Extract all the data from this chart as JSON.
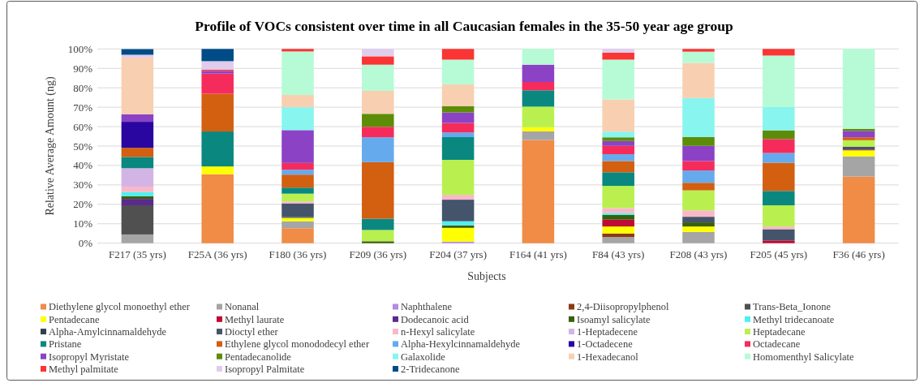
{
  "chart_data": {
    "type": "bar",
    "stacked": true,
    "title": "Profile of VOCs consistent over time in all Caucasian females in the 35-50 year age group",
    "xlabel": "Subjects",
    "ylabel": "Relative Average Amount (ng)",
    "categories": [
      "F217 (35 yrs)",
      "F25A (36 yrs)",
      "F180 (36 yrs)",
      "F209 (36 yrs)",
      "F204 (37 yrs)",
      "F164 (41 yrs)",
      "F84 (43 yrs)",
      "F208 (43 yrs)",
      "F205 (45 yrs)",
      "F36 (46 yrs)"
    ],
    "ylim": [
      0,
      100
    ],
    "yticks": [
      {
        "value": 0,
        "label": "0%"
      },
      {
        "value": 10,
        "label": "10%"
      },
      {
        "value": 20,
        "label": "20%"
      },
      {
        "value": 30,
        "label": "30%"
      },
      {
        "value": 40,
        "label": "40%"
      },
      {
        "value": 50,
        "label": "50%"
      },
      {
        "value": 60,
        "label": "60%"
      },
      {
        "value": 70,
        "label": "70%"
      },
      {
        "value": 80,
        "label": "80%"
      },
      {
        "value": 90,
        "label": "90%"
      },
      {
        "value": 100,
        "label": "100%"
      }
    ],
    "grid": "y",
    "legend": "bottom",
    "series": [
      {
        "name": "Diethylene glycol monoethyl ether",
        "color": "#f08c46",
        "values": [
          null,
          35.5,
          7.7,
          null,
          null,
          53.1,
          null,
          null,
          null,
          34.3
        ]
      },
      {
        "name": "Nonanal",
        "color": "#a5a5a5",
        "values": [
          4.5,
          null,
          3.6,
          null,
          null,
          4.5,
          3.2,
          5.8,
          null,
          10.4
        ]
      },
      {
        "name": "Naphthalene",
        "color": "#b48ce0",
        "values": [
          null,
          null,
          null,
          null,
          0.8,
          null,
          null,
          null,
          null,
          null
        ]
      },
      {
        "name": "2,4-Diisopropylphenol",
        "color": "#8b3a0f",
        "values": [
          null,
          null,
          null,
          null,
          null,
          null,
          1.8,
          null,
          null,
          null
        ]
      },
      {
        "name": "Trans-Beta_Ionone",
        "color": "#505050",
        "values": [
          15.0,
          null,
          null,
          null,
          null,
          null,
          null,
          null,
          null,
          null
        ]
      },
      {
        "name": "Pentadecane",
        "color": "#ffff00",
        "values": [
          null,
          4.0,
          1.7,
          null,
          7.1,
          2.1,
          3.6,
          2.8,
          null,
          3.1
        ]
      },
      {
        "name": "Methyl laurate",
        "color": "#c00a35",
        "values": [
          null,
          null,
          null,
          null,
          null,
          null,
          3.5,
          null,
          1.4,
          0.4
        ]
      },
      {
        "name": "Dodecanoic acid",
        "color": "#5b2a8c",
        "values": [
          3.3,
          null,
          null,
          null,
          null,
          null,
          null,
          null,
          null,
          null
        ]
      },
      {
        "name": "Isoamyl salicylate",
        "color": "#3a5f0b",
        "values": [
          1.4,
          null,
          0.4,
          1.0,
          1.3,
          null,
          2.4,
          2.1,
          null,
          null
        ]
      },
      {
        "name": "Methyl tridecanoate",
        "color": "#4ff0f0",
        "values": [
          2.1,
          null,
          null,
          null,
          2.1,
          null,
          1.0,
          null,
          null,
          null
        ]
      },
      {
        "name": "Alpha-Amylcinnamaldehyde",
        "color": "#323f4f",
        "values": [
          null,
          null,
          null,
          null,
          null,
          null,
          null,
          null,
          null,
          null
        ]
      },
      {
        "name": "Dioctyl ether",
        "color": "#44546a",
        "values": [
          null,
          null,
          7.1,
          null,
          11.1,
          null,
          null,
          2.9,
          5.8,
          1.5
        ]
      },
      {
        "name": "n-Hexyl salicylate",
        "color": "#f9b8c8",
        "values": [
          2.8,
          null,
          1.0,
          null,
          2.5,
          null,
          2.6,
          3.3,
          1.4,
          null
        ]
      },
      {
        "name": "1-Heptadecene",
        "color": "#d3b5e5",
        "values": [
          9.5,
          null,
          null,
          null,
          null,
          null,
          null,
          null,
          null,
          null
        ]
      },
      {
        "name": "Heptadecane",
        "color": "#b9f04f",
        "values": [
          null,
          null,
          4.0,
          5.8,
          18.0,
          10.6,
          11.4,
          10.3,
          10.9,
          3.3
        ]
      },
      {
        "name": "Pristane",
        "color": "#0a8880",
        "values": [
          5.8,
          18.0,
          3.1,
          5.8,
          11.7,
          8.4,
          7.0,
          null,
          7.4,
          null
        ]
      },
      {
        "name": "Ethylene glycol monododecyl ether",
        "color": "#d35f11",
        "values": [
          4.7,
          19.4,
          6.7,
          29.1,
          null,
          null,
          5.8,
          3.9,
          14.5,
          1.5
        ]
      },
      {
        "name": "Alpha-Hexylcinnamaldehyde",
        "color": "#66aaee",
        "values": [
          null,
          null,
          2.5,
          12.8,
          2.4,
          null,
          3.5,
          6.3,
          5.0,
          null
        ]
      },
      {
        "name": "1-Octadecene",
        "color": "#2a06a0",
        "values": [
          13.4,
          null,
          null,
          null,
          null,
          null,
          null,
          null,
          null,
          null
        ]
      },
      {
        "name": "Octadecane",
        "color": "#f52c5b",
        "values": [
          null,
          10.4,
          3.5,
          5.4,
          4.9,
          4.3,
          4.3,
          4.9,
          7.2,
          null
        ]
      },
      {
        "name": "Isopropyl Myristate",
        "color": "#8b42c5",
        "values": [
          3.9,
          1.4,
          16.9,
          null,
          5.4,
          8.9,
          2.5,
          7.8,
          null,
          3.3
        ]
      },
      {
        "name": "Pentadecanolide",
        "color": "#5d8c08",
        "values": [
          null,
          null,
          null,
          6.7,
          3.3,
          null,
          1.9,
          4.5,
          4.5,
          1.1
        ]
      },
      {
        "name": "Galaxolide",
        "color": "#88f5ef",
        "values": [
          null,
          null,
          11.8,
          null,
          null,
          null,
          2.9,
          20.1,
          12.0,
          null
        ]
      },
      {
        "name": "1-Hexadecanol",
        "color": "#f8cfb0",
        "values": [
          29.2,
          null,
          6.3,
          11.8,
          11.1,
          null,
          16.6,
          18.1,
          null,
          null
        ]
      },
      {
        "name": "Homomenthyl Salicylate",
        "color": "#b6fbd6",
        "values": [
          null,
          null,
          22.4,
          13.5,
          12.8,
          8.1,
          20.5,
          5.8,
          26.5,
          41.1
        ]
      },
      {
        "name": "Methyl palmitate",
        "color": "#fb3434",
        "values": [
          null,
          0.7,
          1.3,
          4.3,
          5.5,
          null,
          3.6,
          1.4,
          3.4,
          null
        ]
      },
      {
        "name": "Isopropyl Palmitate",
        "color": "#e0cdee",
        "values": [
          1.4,
          4.3,
          null,
          3.8,
          null,
          null,
          1.9,
          null,
          null,
          null
        ]
      },
      {
        "name": "2-Tridecanone",
        "color": "#004c87",
        "values": [
          2.9,
          6.3,
          null,
          null,
          null,
          null,
          null,
          null,
          null,
          null
        ]
      }
    ]
  }
}
